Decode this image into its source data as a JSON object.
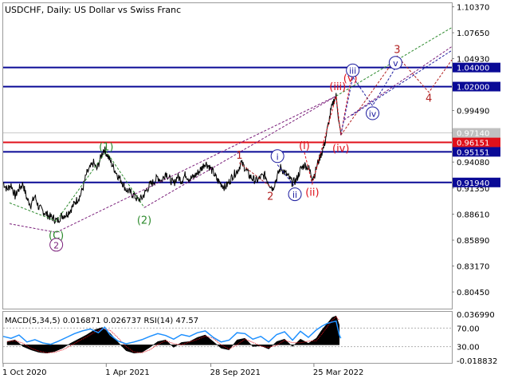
{
  "chart_data": {
    "type": "line",
    "title": "USDCHF, Daily:  US Dollar vs Swiss Franc",
    "price_axis_labels": [
      1.1037,
      1.0765,
      1.0493,
      1.0221,
      0.9949,
      0.9714,
      0.9408,
      0.9135,
      0.8861,
      0.8589,
      0.8317,
      0.8045
    ],
    "price_axis_labels_text": [
      "1.10370",
      "1.07650",
      "1.04930",
      "1.02210",
      "0.99490",
      "0.97140",
      "0.94080",
      "0.91350",
      "0.88610",
      "0.85890",
      "0.83170",
      "0.80450"
    ],
    "ylim": [
      0.787,
      1.1075
    ],
    "x_labels": [
      "1 Oct 2020",
      "1 Apr 2021",
      "28 Sep 2021",
      "25 Mar 2022"
    ],
    "levels": [
      {
        "label": "1.04000",
        "value": 1.04,
        "color": "#0a0a96"
      },
      {
        "label": "1.02000",
        "value": 1.02,
        "color": "#0a0a96"
      },
      {
        "label": "0.96151",
        "value": 0.96151,
        "color": "#e0101a"
      },
      {
        "label": "0.95151",
        "value": 0.95151,
        "color": "#0a0a96"
      },
      {
        "label": "0.91940",
        "value": 0.9194,
        "color": "#0a0a96"
      }
    ],
    "current_price": {
      "label": "0.97140",
      "value": 0.9714
    },
    "price_series": [
      {
        "t": 0,
        "p": 0.9195
      },
      {
        "t": 5,
        "p": 0.912
      },
      {
        "t": 10,
        "p": 0.917
      },
      {
        "t": 15,
        "p": 0.905
      },
      {
        "t": 20,
        "p": 0.913
      },
      {
        "t": 25,
        "p": 0.918
      },
      {
        "t": 30,
        "p": 0.902
      },
      {
        "t": 35,
        "p": 0.896
      },
      {
        "t": 40,
        "p": 0.905
      },
      {
        "t": 45,
        "p": 0.893
      },
      {
        "t": 52,
        "p": 0.888
      },
      {
        "t": 58,
        "p": 0.884
      },
      {
        "t": 63,
        "p": 0.882
      },
      {
        "t": 68,
        "p": 0.879
      },
      {
        "t": 73,
        "p": 0.884
      },
      {
        "t": 80,
        "p": 0.886
      },
      {
        "t": 86,
        "p": 0.892
      },
      {
        "t": 92,
        "p": 0.9
      },
      {
        "t": 97,
        "p": 0.905
      },
      {
        "t": 101,
        "p": 0.915
      },
      {
        "t": 105,
        "p": 0.928
      },
      {
        "t": 110,
        "p": 0.935
      },
      {
        "t": 114,
        "p": 0.94
      },
      {
        "t": 118,
        "p": 0.933
      },
      {
        "t": 122,
        "p": 0.943
      },
      {
        "t": 127,
        "p": 0.955
      },
      {
        "t": 131,
        "p": 0.949
      },
      {
        "t": 135,
        "p": 0.942
      },
      {
        "t": 140,
        "p": 0.934
      },
      {
        "t": 145,
        "p": 0.926
      },
      {
        "t": 150,
        "p": 0.92
      },
      {
        "t": 155,
        "p": 0.912
      },
      {
        "t": 160,
        "p": 0.909
      },
      {
        "t": 165,
        "p": 0.906
      },
      {
        "t": 170,
        "p": 0.901
      },
      {
        "t": 175,
        "p": 0.903
      },
      {
        "t": 180,
        "p": 0.91
      },
      {
        "t": 185,
        "p": 0.917
      },
      {
        "t": 190,
        "p": 0.92
      },
      {
        "t": 195,
        "p": 0.925
      },
      {
        "t": 200,
        "p": 0.921
      },
      {
        "t": 205,
        "p": 0.93
      },
      {
        "t": 210,
        "p": 0.923
      },
      {
        "t": 215,
        "p": 0.918
      },
      {
        "t": 220,
        "p": 0.926
      },
      {
        "t": 225,
        "p": 0.921
      },
      {
        "t": 230,
        "p": 0.928
      },
      {
        "t": 235,
        "p": 0.923
      },
      {
        "t": 240,
        "p": 0.925
      },
      {
        "t": 245,
        "p": 0.929
      },
      {
        "t": 250,
        "p": 0.934
      },
      {
        "t": 255,
        "p": 0.94
      },
      {
        "t": 260,
        "p": 0.936
      },
      {
        "t": 265,
        "p": 0.93
      },
      {
        "t": 270,
        "p": 0.922
      },
      {
        "t": 275,
        "p": 0.918
      },
      {
        "t": 280,
        "p": 0.914
      },
      {
        "t": 285,
        "p": 0.92
      },
      {
        "t": 290,
        "p": 0.927
      },
      {
        "t": 296,
        "p": 0.932
      },
      {
        "t": 300,
        "p": 0.94
      },
      {
        "t": 305,
        "p": 0.935
      },
      {
        "t": 310,
        "p": 0.927
      },
      {
        "t": 315,
        "p": 0.923
      },
      {
        "t": 320,
        "p": 0.921
      },
      {
        "t": 325,
        "p": 0.925
      },
      {
        "t": 330,
        "p": 0.927
      },
      {
        "t": 335,
        "p": 0.919
      },
      {
        "t": 340,
        "p": 0.913
      },
      {
        "t": 345,
        "p": 0.924
      },
      {
        "t": 350,
        "p": 0.935
      },
      {
        "t": 355,
        "p": 0.93
      },
      {
        "t": 360,
        "p": 0.925
      },
      {
        "t": 365,
        "p": 0.919
      },
      {
        "t": 370,
        "p": 0.922
      },
      {
        "t": 375,
        "p": 0.933
      },
      {
        "t": 380,
        "p": 0.938
      },
      {
        "t": 385,
        "p": 0.935
      },
      {
        "t": 390,
        "p": 0.925
      },
      {
        "t": 393,
        "p": 0.928
      },
      {
        "t": 397,
        "p": 0.94
      },
      {
        "t": 401,
        "p": 0.949
      },
      {
        "t": 405,
        "p": 0.958
      },
      {
        "t": 409,
        "p": 0.975
      },
      {
        "t": 413,
        "p": 0.993
      },
      {
        "t": 417,
        "p": 1.005
      },
      {
        "t": 420,
        "p": 1.01
      },
      {
        "t": 422,
        "p": 0.996
      },
      {
        "t": 424,
        "p": 0.98
      },
      {
        "t": 426,
        "p": 0.969
      }
    ],
    "wave_labels": [
      {
        "text": "(1)",
        "t": 130,
        "p": 0.957,
        "color": "#2e8b2e",
        "shape": "none"
      },
      {
        "text": "(2)",
        "t": 178,
        "p": 0.88,
        "color": "#2e8b2e",
        "shape": "none"
      },
      {
        "text": "(C)",
        "t": 67,
        "p": 0.864,
        "color": "#2e8b2e",
        "shape": "none"
      },
      {
        "text": "2",
        "t": 67,
        "p": 0.854,
        "color": "#7a1e7a",
        "shape": "circle"
      },
      {
        "text": "1",
        "t": 298,
        "p": 0.948,
        "color": "#b22222",
        "shape": "none"
      },
      {
        "text": "2",
        "t": 337,
        "p": 0.905,
        "color": "#b22222",
        "shape": "none"
      },
      {
        "text": "i",
        "t": 346,
        "p": 0.947,
        "color": "#1a1a9e",
        "shape": "circle"
      },
      {
        "text": "ii",
        "t": 368,
        "p": 0.907,
        "color": "#1a1a9e",
        "shape": "circle"
      },
      {
        "text": "(i)",
        "t": 380,
        "p": 0.958,
        "color": "#e0101a",
        "shape": "none"
      },
      {
        "text": "(ii)",
        "t": 390,
        "p": 0.909,
        "color": "#e0101a",
        "shape": "none"
      },
      {
        "text": "(iii)",
        "t": 422,
        "p": 1.02,
        "color": "#e0101a",
        "shape": "none"
      },
      {
        "text": "(iv)",
        "t": 426,
        "p": 0.955,
        "color": "#e0101a",
        "shape": "none"
      },
      {
        "text": "(v)",
        "t": 438,
        "p": 1.029,
        "color": "#e0101a",
        "shape": "none"
      },
      {
        "text": "iii",
        "t": 441,
        "p": 1.037,
        "color": "#1a1a9e",
        "shape": "circle"
      },
      {
        "text": "iv",
        "t": 466,
        "p": 0.992,
        "color": "#1a1a9e",
        "shape": "circle"
      },
      {
        "text": "v",
        "t": 495,
        "p": 1.045,
        "color": "#1a1a9e",
        "shape": "circle"
      },
      {
        "text": "3",
        "t": 497,
        "p": 1.059,
        "color": "#b22222",
        "shape": "none"
      },
      {
        "text": "4",
        "t": 537,
        "p": 1.008,
        "color": "#b22222",
        "shape": "none"
      }
    ],
    "dashed_paths": [
      {
        "color": "#2e8b2e",
        "points": [
          {
            "t": 8,
            "p": 0.898
          },
          {
            "t": 67,
            "p": 0.879
          },
          {
            "t": 130,
            "p": 0.952
          },
          {
            "t": 178,
            "p": 0.893
          }
        ]
      },
      {
        "color": "#7a1e7a",
        "points": [
          {
            "t": 8,
            "p": 0.876
          },
          {
            "t": 67,
            "p": 0.867
          }
        ]
      },
      {
        "color": "#7a1e7a",
        "points": [
          {
            "t": 67,
            "p": 0.867
          },
          {
            "t": 420,
            "p": 1.01
          }
        ]
      },
      {
        "color": "#7a1e7a",
        "points": [
          {
            "t": 178,
            "p": 0.893
          },
          {
            "t": 420,
            "p": 1.01
          }
        ]
      },
      {
        "color": "#b22222",
        "points": [
          {
            "t": 298,
            "p": 0.94
          },
          {
            "t": 337,
            "p": 0.915
          }
        ]
      },
      {
        "color": "#1a1a9e",
        "points": [
          {
            "t": 346,
            "p": 0.938
          },
          {
            "t": 368,
            "p": 0.915
          }
        ]
      },
      {
        "color": "#e0101a",
        "points": [
          {
            "t": 380,
            "p": 0.951
          },
          {
            "t": 390,
            "p": 0.918
          },
          {
            "t": 420,
            "p": 1.01
          },
          {
            "t": 426,
            "p": 0.969
          },
          {
            "t": 438,
            "p": 1.024
          }
        ]
      },
      {
        "color": "#1a1a9e",
        "points": [
          {
            "t": 426,
            "p": 0.969
          },
          {
            "t": 441,
            "p": 1.03
          },
          {
            "t": 466,
            "p": 1.0
          },
          {
            "t": 495,
            "p": 1.04
          }
        ]
      },
      {
        "color": "#b22222",
        "points": [
          {
            "t": 426,
            "p": 0.969
          },
          {
            "t": 497,
            "p": 1.052
          },
          {
            "t": 537,
            "p": 1.014
          },
          {
            "t": 566,
            "p": 1.048
          }
        ]
      },
      {
        "color": "#2e8b2e",
        "points": [
          {
            "t": 420,
            "p": 1.01
          },
          {
            "t": 566,
            "p": 1.082
          }
        ]
      },
      {
        "color": "#7a1e7a",
        "points": [
          {
            "t": 430,
            "p": 0.985
          },
          {
            "t": 566,
            "p": 1.062
          }
        ]
      },
      {
        "color": "#1a1a9e",
        "points": [
          {
            "t": 440,
            "p": 0.99
          },
          {
            "t": 566,
            "p": 1.058
          }
        ]
      }
    ],
    "indicator": {
      "label": "MACD(5,34,5) 0.016871 0.026737 RSI(14) 47.57",
      "axis_labels": [
        {
          "text": "0.036990",
          "value": 0.03699
        },
        {
          "text": "70.00",
          "value": 70
        },
        {
          "text": "30.00",
          "value": 30
        },
        {
          "text": "-0.018832",
          "value": -0.018832
        }
      ],
      "macd_ylim": [
        -0.018832,
        0.03699
      ],
      "rsi_ylim": [
        -5,
        105
      ],
      "rsi_levels": [
        70,
        30
      ],
      "macd_hist": [
        {
          "t": 5,
          "v": 0.004
        },
        {
          "t": 15,
          "v": 0.006
        },
        {
          "t": 25,
          "v": -0.002
        },
        {
          "t": 35,
          "v": -0.006
        },
        {
          "t": 45,
          "v": -0.009
        },
        {
          "t": 55,
          "v": -0.01
        },
        {
          "t": 65,
          "v": -0.008
        },
        {
          "t": 75,
          "v": -0.004
        },
        {
          "t": 85,
          "v": 0.002
        },
        {
          "t": 95,
          "v": 0.007
        },
        {
          "t": 105,
          "v": 0.012
        },
        {
          "t": 115,
          "v": 0.018
        },
        {
          "t": 125,
          "v": 0.021
        },
        {
          "t": 135,
          "v": 0.014
        },
        {
          "t": 145,
          "v": 0.003
        },
        {
          "t": 155,
          "v": -0.007
        },
        {
          "t": 165,
          "v": -0.01
        },
        {
          "t": 175,
          "v": -0.009
        },
        {
          "t": 185,
          "v": -0.003
        },
        {
          "t": 195,
          "v": 0.004
        },
        {
          "t": 205,
          "v": 0.006
        },
        {
          "t": 215,
          "v": -0.003
        },
        {
          "t": 225,
          "v": 0.003
        },
        {
          "t": 235,
          "v": 0.004
        },
        {
          "t": 245,
          "v": 0.009
        },
        {
          "t": 255,
          "v": 0.012
        },
        {
          "t": 265,
          "v": 0.004
        },
        {
          "t": 275,
          "v": -0.004
        },
        {
          "t": 285,
          "v": -0.006
        },
        {
          "t": 295,
          "v": 0.006
        },
        {
          "t": 305,
          "v": 0.008
        },
        {
          "t": 315,
          "v": -0.002
        },
        {
          "t": 325,
          "v": -0.001
        },
        {
          "t": 335,
          "v": -0.005
        },
        {
          "t": 345,
          "v": 0.004
        },
        {
          "t": 355,
          "v": 0.007
        },
        {
          "t": 365,
          "v": -0.002
        },
        {
          "t": 375,
          "v": 0.007
        },
        {
          "t": 385,
          "v": 0.002
        },
        {
          "t": 395,
          "v": 0.008
        },
        {
          "t": 402,
          "v": 0.018
        },
        {
          "t": 409,
          "v": 0.026
        },
        {
          "t": 415,
          "v": 0.033
        },
        {
          "t": 420,
          "v": 0.035
        },
        {
          "t": 424,
          "v": 0.024
        }
      ],
      "rsi": [
        {
          "t": 0,
          "v": 52
        },
        {
          "t": 10,
          "v": 48
        },
        {
          "t": 20,
          "v": 55
        },
        {
          "t": 30,
          "v": 40
        },
        {
          "t": 40,
          "v": 45
        },
        {
          "t": 50,
          "v": 38
        },
        {
          "t": 60,
          "v": 35
        },
        {
          "t": 70,
          "v": 42
        },
        {
          "t": 80,
          "v": 50
        },
        {
          "t": 90,
          "v": 58
        },
        {
          "t": 100,
          "v": 64
        },
        {
          "t": 110,
          "v": 68
        },
        {
          "t": 120,
          "v": 60
        },
        {
          "t": 128,
          "v": 72
        },
        {
          "t": 135,
          "v": 55
        },
        {
          "t": 145,
          "v": 42
        },
        {
          "t": 155,
          "v": 36
        },
        {
          "t": 165,
          "v": 40
        },
        {
          "t": 175,
          "v": 45
        },
        {
          "t": 185,
          "v": 52
        },
        {
          "t": 195,
          "v": 58
        },
        {
          "t": 205,
          "v": 54
        },
        {
          "t": 215,
          "v": 46
        },
        {
          "t": 225,
          "v": 56
        },
        {
          "t": 235,
          "v": 52
        },
        {
          "t": 245,
          "v": 60
        },
        {
          "t": 255,
          "v": 64
        },
        {
          "t": 265,
          "v": 50
        },
        {
          "t": 275,
          "v": 40
        },
        {
          "t": 285,
          "v": 44
        },
        {
          "t": 295,
          "v": 60
        },
        {
          "t": 305,
          "v": 58
        },
        {
          "t": 315,
          "v": 46
        },
        {
          "t": 325,
          "v": 52
        },
        {
          "t": 335,
          "v": 40
        },
        {
          "t": 345,
          "v": 56
        },
        {
          "t": 355,
          "v": 62
        },
        {
          "t": 365,
          "v": 44
        },
        {
          "t": 375,
          "v": 63
        },
        {
          "t": 385,
          "v": 50
        },
        {
          "t": 395,
          "v": 66
        },
        {
          "t": 402,
          "v": 74
        },
        {
          "t": 409,
          "v": 80
        },
        {
          "t": 415,
          "v": 83
        },
        {
          "t": 420,
          "v": 85
        },
        {
          "t": 424,
          "v": 55
        },
        {
          "t": 426,
          "v": 48
        }
      ]
    },
    "time_domain": [
      0,
      566
    ],
    "x_label_times": [
      0,
      130,
      262,
      392
    ]
  }
}
